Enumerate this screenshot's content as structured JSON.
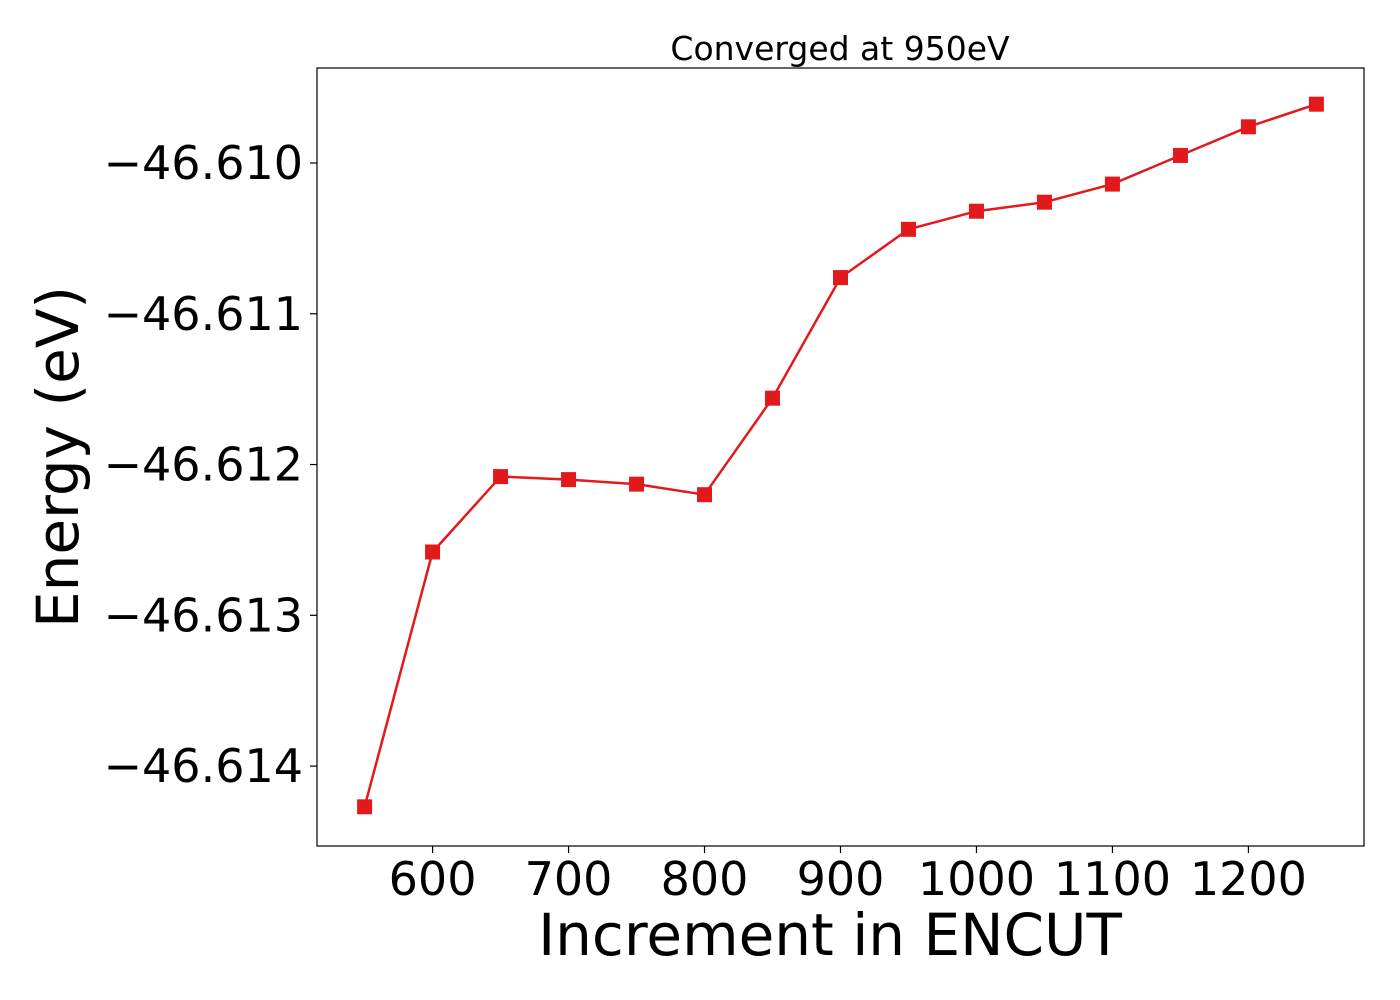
{
  "chart_data": {
    "type": "line",
    "title": "Converged at 950eV",
    "xlabel": "Increment in ENCUT",
    "ylabel": "Energy (eV)",
    "xlim": [
      515,
      1285
    ],
    "ylim": [
      -46.61453,
      -46.60937
    ],
    "x_ticks": [
      600,
      700,
      800,
      900,
      1000,
      1100,
      1200
    ],
    "x_tick_labels": [
      "600",
      "700",
      "800",
      "900",
      "1000",
      "1100",
      "1200"
    ],
    "y_ticks": [
      -46.61,
      -46.611,
      -46.612,
      -46.613,
      -46.614
    ],
    "y_tick_labels": [
      "−46.610",
      "−46.611",
      "−46.612",
      "−46.613",
      "−46.614"
    ],
    "grid": false,
    "series": [
      {
        "color": "#e31a1c",
        "marker": "square",
        "x": [
          550,
          600,
          650,
          700,
          750,
          800,
          850,
          900,
          950,
          1000,
          1050,
          1100,
          1150,
          1200,
          1250
        ],
        "y": [
          -46.61427,
          -46.61258,
          -46.61208,
          -46.6121,
          -46.61213,
          -46.6122,
          -46.61156,
          -46.61076,
          -46.61044,
          -46.61032,
          -46.61026,
          -46.61014,
          -46.60995,
          -46.60976,
          -46.60961
        ]
      }
    ]
  }
}
